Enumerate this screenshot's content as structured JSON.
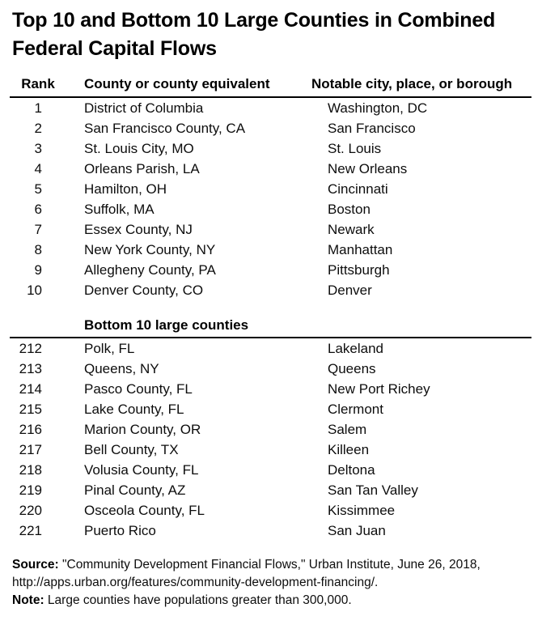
{
  "title": "Top 10 and Bottom 10 Large Counties in Combined Federal Capital Flows",
  "table": {
    "columns": {
      "rank": "Rank",
      "county": "County or county equivalent",
      "city": "Notable city, place, or borough"
    },
    "top10": [
      {
        "rank": "1",
        "county": "District of Columbia",
        "city": "Washington, DC"
      },
      {
        "rank": "2",
        "county": "San Francisco County, CA",
        "city": "San Francisco"
      },
      {
        "rank": "3",
        "county": "St. Louis City, MO",
        "city": "St. Louis"
      },
      {
        "rank": "4",
        "county": "Orleans Parish, LA",
        "city": "New Orleans"
      },
      {
        "rank": "5",
        "county": "Hamilton, OH",
        "city": "Cincinnati"
      },
      {
        "rank": "6",
        "county": "Suffolk, MA",
        "city": "Boston"
      },
      {
        "rank": "7",
        "county": "Essex County, NJ",
        "city": "Newark"
      },
      {
        "rank": "8",
        "county": "New York County, NY",
        "city": "Manhattan"
      },
      {
        "rank": "9",
        "county": "Allegheny County, PA",
        "city": "Pittsburgh"
      },
      {
        "rank": "10",
        "county": "Denver County, CO",
        "city": "Denver"
      }
    ],
    "bottom_section_header": "Bottom 10 large counties",
    "bottom10": [
      {
        "rank": "212",
        "county": "Polk, FL",
        "city": "Lakeland"
      },
      {
        "rank": "213",
        "county": "Queens, NY",
        "city": "Queens"
      },
      {
        "rank": "214",
        "county": "Pasco County, FL",
        "city": "New Port Richey"
      },
      {
        "rank": "215",
        "county": "Lake County, FL",
        "city": "Clermont"
      },
      {
        "rank": "216",
        "county": "Marion County, OR",
        "city": "Salem"
      },
      {
        "rank": "217",
        "county": "Bell County, TX",
        "city": "Killeen"
      },
      {
        "rank": "218",
        "county": "Volusia County, FL",
        "city": "Deltona"
      },
      {
        "rank": "219",
        "county": "Pinal County, AZ",
        "city": "San Tan Valley"
      },
      {
        "rank": "220",
        "county": "Osceola County, FL",
        "city": "Kissimmee"
      },
      {
        "rank": "221",
        "county": "Puerto Rico",
        "city": "San Juan"
      }
    ]
  },
  "footer": {
    "source_label": "Source:",
    "source_text": " \"Community Development Financial Flows,\" Urban Institute, June 26, 2018, http://apps.urban.org/features/community-development-financing/.",
    "note_label": "Note:",
    "note_text": " Large counties have populations greater than 300,000."
  },
  "colors": {
    "text": "#000000",
    "background": "#ffffff",
    "rule": "#000000"
  }
}
